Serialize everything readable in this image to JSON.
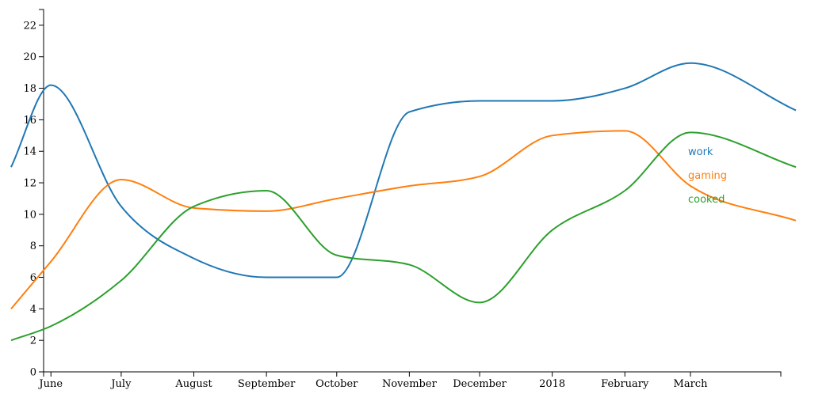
{
  "chart_data": {
    "type": "line",
    "title": "",
    "xlabel": "",
    "ylabel": "",
    "x_ticks": [
      "June",
      "July",
      "August",
      "September",
      "October",
      "November",
      "December",
      "2018",
      "February",
      "March"
    ],
    "x_tick_dates": [
      "2017-06-01",
      "2017-07-01",
      "2017-08-01",
      "2017-09-01",
      "2017-10-01",
      "2017-11-01",
      "2017-12-01",
      "2018-01-01",
      "2018-02-01",
      "2018-03-01"
    ],
    "x_range": [
      "2017-05-15",
      "2018-04-15"
    ],
    "ylim": [
      0,
      23
    ],
    "y_ticks": [
      0,
      2,
      4,
      6,
      8,
      10,
      12,
      14,
      16,
      18,
      20,
      22
    ],
    "grid": false,
    "legend_position": "right",
    "series": [
      {
        "name": "work",
        "color": "#1f77b4",
        "x": [
          "2017-05-15",
          "2017-06-01",
          "2017-07-01",
          "2017-08-01",
          "2017-09-01",
          "2017-10-01",
          "2017-11-01",
          "2017-12-01",
          "2018-01-01",
          "2018-02-01",
          "2018-03-01",
          "2018-04-15"
        ],
        "values": [
          13,
          18.2,
          10.5,
          7.2,
          6.0,
          6.0,
          16.5,
          17.2,
          17.2,
          18.0,
          19.6,
          16.6
        ]
      },
      {
        "name": "gaming",
        "color": "#ff7f0e",
        "x": [
          "2017-05-15",
          "2017-06-01",
          "2017-07-01",
          "2017-08-01",
          "2017-09-01",
          "2017-10-01",
          "2017-11-01",
          "2017-12-01",
          "2018-01-01",
          "2018-02-01",
          "2018-03-01",
          "2018-04-15"
        ],
        "values": [
          4,
          7.0,
          12.2,
          10.4,
          10.2,
          11.0,
          11.8,
          12.4,
          15.0,
          15.3,
          11.8,
          9.6
        ]
      },
      {
        "name": "cooked",
        "color": "#2ca02c",
        "x": [
          "2017-05-15",
          "2017-06-01",
          "2017-07-01",
          "2017-08-01",
          "2017-09-01",
          "2017-10-01",
          "2017-11-01",
          "2017-12-01",
          "2018-01-01",
          "2018-02-01",
          "2018-03-01",
          "2018-04-15"
        ],
        "values": [
          2,
          2.9,
          5.8,
          10.5,
          11.5,
          7.4,
          6.8,
          4.4,
          9.0,
          11.5,
          15.2,
          13.0
        ]
      }
    ]
  }
}
